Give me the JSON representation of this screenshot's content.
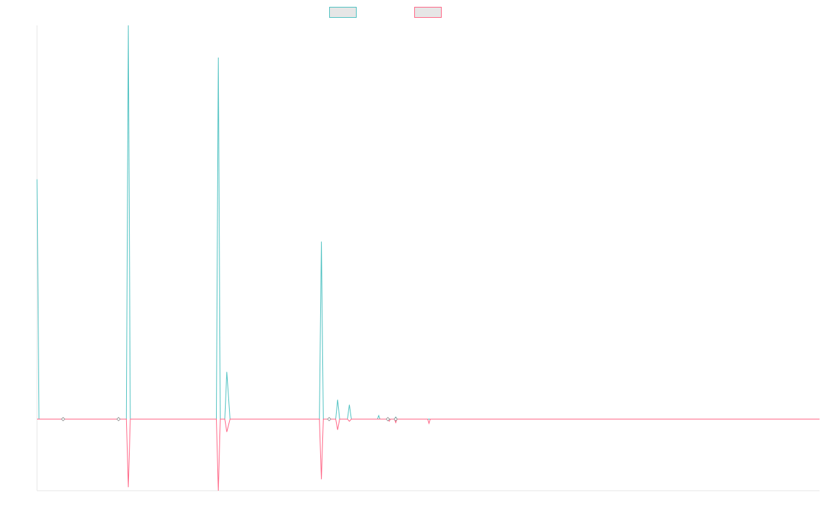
{
  "chart_data": {
    "type": "line",
    "title": "",
    "xlabel": "",
    "ylabel": "",
    "legend_position": "top",
    "grid": false,
    "xlim": [
      0,
      120
    ],
    "ylim": [
      -10,
      55
    ],
    "x": [
      0,
      0.3,
      4,
      12,
      13.7,
      14,
      14.3,
      27.5,
      27.8,
      28.1,
      28.8,
      29.1,
      29.6,
      43.3,
      43.6,
      43.9,
      44.2,
      45.8,
      46.1,
      46.4,
      47.6,
      47.9,
      48.2,
      52.2,
      52.4,
      52.6,
      53.8,
      54.0,
      54.2,
      54.8,
      55.0,
      55.2,
      59.9,
      60.1,
      60.3,
      120
    ],
    "series": [
      {
        "color": "#4bc0c0",
        "values": [
          33.5,
          0,
          0,
          0,
          0,
          55,
          0,
          0,
          50.5,
          0,
          0,
          6.6,
          0,
          0,
          24.8,
          0,
          0,
          0,
          2.7,
          0,
          0,
          2,
          0,
          0,
          0.5,
          0,
          0,
          0,
          0,
          0,
          0.3,
          0,
          0,
          0,
          0,
          0
        ]
      },
      {
        "color": "#ff6384",
        "values": [
          0,
          0,
          0,
          0,
          0,
          -9.5,
          0,
          0,
          -10,
          0,
          0,
          -1.8,
          0,
          0,
          -8.4,
          0,
          0,
          0,
          -1.5,
          0,
          0,
          -0.3,
          0,
          0,
          0,
          0,
          0,
          -0.3,
          0,
          0,
          -0.5,
          0,
          0,
          -0.6,
          0,
          0
        ]
      }
    ],
    "markers": {
      "x": [
        4,
        12.5,
        44.8,
        53.8,
        55
      ],
      "color": "#888888"
    }
  }
}
